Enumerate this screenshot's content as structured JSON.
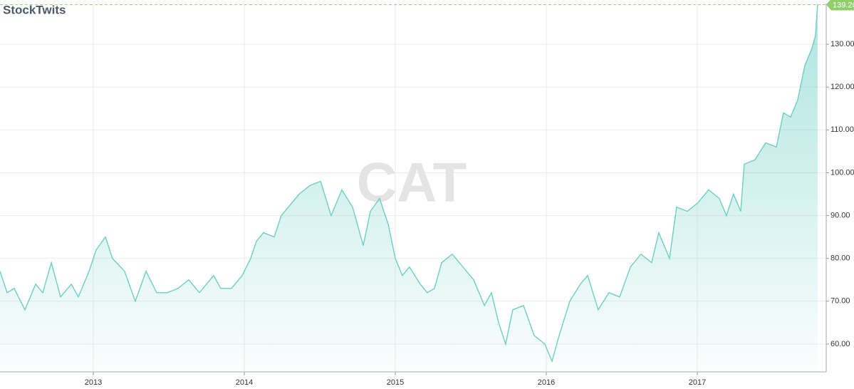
{
  "chart_data": {
    "type": "area",
    "title": "CAT",
    "brand": "StockTwits",
    "x": [
      2012.382,
      2012.429,
      2012.476,
      2012.547,
      2012.618,
      2012.665,
      2012.722,
      2012.783,
      2012.854,
      2012.901,
      2012.972,
      2013.019,
      2013.08,
      2013.127,
      2013.207,
      2013.278,
      2013.349,
      2013.42,
      2013.49,
      2013.561,
      2013.632,
      2013.703,
      2013.797,
      2013.844,
      2013.915,
      2013.986,
      2014.042,
      2014.08,
      2014.127,
      2014.198,
      2014.245,
      2014.316,
      2014.363,
      2014.434,
      2014.505,
      2014.575,
      2014.646,
      2014.717,
      2014.788,
      2014.835,
      2014.896,
      2014.953,
      2015.0,
      2015.047,
      2015.094,
      2015.165,
      2015.212,
      2015.259,
      2015.307,
      2015.377,
      2015.448,
      2015.519,
      2015.59,
      2015.637,
      2015.684,
      2015.731,
      2015.778,
      2015.849,
      2015.92,
      2015.99,
      2016.038,
      2016.085,
      2016.156,
      2016.226,
      2016.274,
      2016.344,
      2016.415,
      2016.486,
      2016.557,
      2016.627,
      2016.698,
      2016.745,
      2016.816,
      2016.863,
      2016.934,
      2017.005,
      2017.075,
      2017.146,
      2017.193,
      2017.24,
      2017.288,
      2017.311,
      2017.382,
      2017.453,
      2017.524,
      2017.571,
      2017.618,
      2017.665,
      2017.712,
      2017.759,
      2017.783,
      2017.797
    ],
    "series": [
      {
        "color": "#6ccfc6",
        "values": [
          77,
          72,
          73,
          68,
          74,
          72,
          79,
          71,
          74,
          71,
          77,
          82,
          85,
          80,
          77,
          70,
          77,
          72,
          72,
          73,
          75,
          72,
          76,
          73,
          73,
          76,
          80,
          84,
          86,
          85,
          90,
          93,
          95,
          97,
          98,
          90,
          96,
          92,
          83,
          91,
          94,
          88,
          80,
          76,
          78,
          74,
          72,
          73,
          79,
          81,
          78,
          75,
          69,
          72,
          65,
          60,
          68,
          69,
          62,
          60,
          56,
          62,
          70,
          74,
          76,
          68,
          72,
          71,
          78,
          81,
          79,
          86,
          80,
          92,
          91,
          93,
          96,
          94,
          90,
          95,
          91,
          102,
          103,
          107,
          106,
          114,
          113,
          117,
          125,
          129,
          132,
          139.26
        ]
      }
    ],
    "xlim": [
      2012.382,
      2017.854
    ],
    "xticks": [
      2013,
      2014,
      2015,
      2016,
      2017
    ],
    "ylim": [
      53.5,
      139.5
    ],
    "yticks": [
      {
        "value": 60,
        "label": "60.00"
      },
      {
        "value": 70,
        "label": "70.00"
      },
      {
        "value": 80,
        "label": "80.00"
      },
      {
        "value": 90,
        "label": "90.00"
      },
      {
        "value": 100,
        "label": "100.00"
      },
      {
        "value": 110,
        "label": "110.00"
      },
      {
        "value": 120,
        "label": "120.00"
      },
      {
        "value": 130,
        "label": "130.00"
      }
    ],
    "grid": true
  }
}
